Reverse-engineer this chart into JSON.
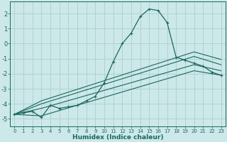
{
  "xlabel": "Humidex (Indice chaleur)",
  "bg_color": "#cce8e8",
  "grid_color": "#aad0d0",
  "line_color": "#1a6860",
  "xlim": [
    -0.5,
    23.5
  ],
  "ylim": [
    -5.5,
    2.8
  ],
  "xticks": [
    0,
    1,
    2,
    3,
    4,
    5,
    6,
    7,
    8,
    9,
    10,
    11,
    12,
    13,
    14,
    15,
    16,
    17,
    18,
    19,
    20,
    21,
    22,
    23
  ],
  "yticks": [
    -5,
    -4,
    -3,
    -2,
    -1,
    0,
    1,
    2
  ],
  "curve1_x": [
    0,
    1,
    2,
    3,
    4,
    5,
    6,
    7,
    8,
    9,
    10,
    11,
    12,
    13,
    14,
    15,
    16,
    17,
    18,
    19,
    20,
    21,
    22,
    23
  ],
  "curve1_y": [
    -4.7,
    -4.6,
    -4.5,
    -4.9,
    -4.1,
    -4.3,
    -4.2,
    -4.1,
    -3.8,
    -3.5,
    -2.6,
    -1.2,
    0.0,
    0.7,
    1.8,
    2.3,
    2.2,
    1.4,
    -0.9,
    -1.1,
    -1.3,
    -1.5,
    -1.9,
    -2.1
  ],
  "curve2_x": [
    0,
    3,
    20,
    23
  ],
  "curve2_y": [
    -4.7,
    -4.8,
    -1.8,
    -2.1
  ],
  "curve3_x": [
    0,
    3,
    20,
    23
  ],
  "curve3_y": [
    -4.7,
    -4.3,
    -1.4,
    -1.8
  ],
  "curve4_x": [
    0,
    3,
    20,
    23
  ],
  "curve4_y": [
    -4.7,
    -4.0,
    -0.85,
    -1.4
  ],
  "curve5_x": [
    0,
    3,
    20,
    23
  ],
  "curve5_y": [
    -4.7,
    -3.8,
    -0.55,
    -1.05
  ]
}
